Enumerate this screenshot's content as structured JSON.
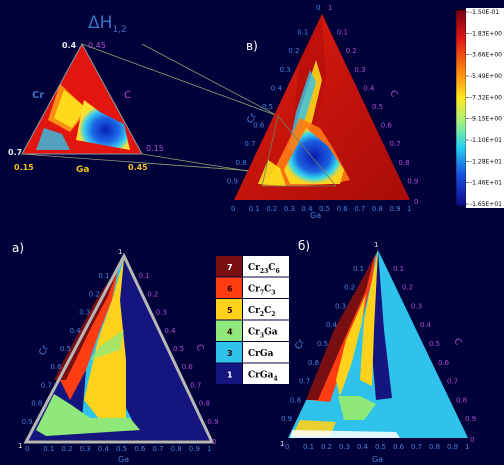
{
  "inset": {
    "title_main": "ΔH",
    "title_sub": "1,2",
    "label_cr": "Cr",
    "label_c": "C",
    "label_ga": "Ga",
    "top_left": "0.4",
    "top_right": "0.45",
    "left_val": "0.7",
    "right_val": "0.15",
    "bottom_left": "0.15",
    "bottom_right": "0.45"
  },
  "panel_v": {
    "label": "в)",
    "axis_left": "Cr",
    "axis_right": "C",
    "axis_bottom": "Ga",
    "left_ticks": [
      "0.1",
      "0.2",
      "0.3",
      "0.4",
      "0.5",
      "0.6",
      "0.7",
      "0.8",
      "0.9"
    ],
    "right_ticks": [
      "0.1",
      "0.2",
      "0.3",
      "0.4",
      "0.5",
      "0.6",
      "0.7",
      "0.8",
      "0.9"
    ],
    "bottom_ticks": [
      "0",
      "0.1",
      "0.2",
      "0.3",
      "0.4",
      "0.5",
      "0.6",
      "0.7",
      "0.8",
      "0.9",
      "1"
    ],
    "apex_left": "0",
    "apex_right": "1",
    "corner_right": "0",
    "colorbar_ticks": [
      "-1.50E-01",
      "-1.83E+00",
      "-3.66E+00",
      "-5.49E+00",
      "-7.32E+00",
      "-9.15E+00",
      "-1.10E+01",
      "-1.28E+01",
      "-1.46E+01",
      "-1.65E+01"
    ]
  },
  "panel_a": {
    "label": "а)",
    "axis_left": "Cr",
    "axis_right": "C",
    "axis_bottom": "Ga",
    "left_ticks": [
      "0.1",
      "0.2",
      "0.3",
      "0.4",
      "0.5",
      "0.6",
      "0.7",
      "0.8",
      "0.9"
    ],
    "right_ticks": [
      "0.1",
      "0.2",
      "0.3",
      "0.4",
      "0.5",
      "0.6",
      "0.7",
      "0.8",
      "0.9"
    ],
    "bottom_ticks": [
      "0",
      "0.1",
      "0.2",
      "0.3",
      "0.4",
      "0.5",
      "0.6",
      "0.7",
      "0.8",
      "0.9",
      "1"
    ],
    "apex": "1",
    "corner_left": "1",
    "corner_right": "0"
  },
  "panel_b": {
    "label": "б)",
    "axis_left": "Cr",
    "axis_right": "C",
    "axis_bottom": "Ga",
    "left_ticks": [
      "0.1",
      "0.2",
      "0.3",
      "0.4",
      "0.5",
      "0.6",
      "0.7",
      "0.8",
      "0.9"
    ],
    "right_ticks": [
      "0.1",
      "0.2",
      "0.3",
      "0.4",
      "0.5",
      "0.6",
      "0.7",
      "0.8",
      "0.9"
    ],
    "bottom_ticks": [
      "0",
      "0.1",
      "0.2",
      "0.3",
      "0.4",
      "0.5",
      "0.6",
      "0.7",
      "0.8",
      "0.9",
      "1"
    ],
    "apex": "1",
    "corner_left": "1",
    "corner_right": "0"
  },
  "legend": {
    "items": [
      {
        "num": "7",
        "base": "Cr",
        "sub1": "23",
        "mid": "C",
        "sub2": "6",
        "color": "#7a0f12"
      },
      {
        "num": "6",
        "base": "Cr",
        "sub1": "7",
        "mid": "C",
        "sub2": "3",
        "color": "#ff3c12"
      },
      {
        "num": "5",
        "base": "Cr",
        "sub1": "2",
        "mid": "C",
        "sub2": "2",
        "color": "#ffd21c"
      },
      {
        "num": "4",
        "base": "Cr",
        "sub1": "3",
        "mid": "Ga",
        "sub2": "",
        "color": "#8ee97a"
      },
      {
        "num": "3",
        "base": "CrGa",
        "sub1": "",
        "mid": "",
        "sub2": "",
        "color": "#2fc3ec"
      },
      {
        "num": "1",
        "base": "CrGa",
        "sub1": "4",
        "mid": "",
        "sub2": "",
        "color": "#14157e"
      }
    ]
  },
  "colors": {
    "background": "#02023a",
    "phase_7": "#7a0f12",
    "phase_6": "#ff3c12",
    "phase_5": "#ffd21c",
    "phase_4": "#8ee97a",
    "phase_3": "#2fc3ec",
    "phase_1": "#14157e"
  }
}
